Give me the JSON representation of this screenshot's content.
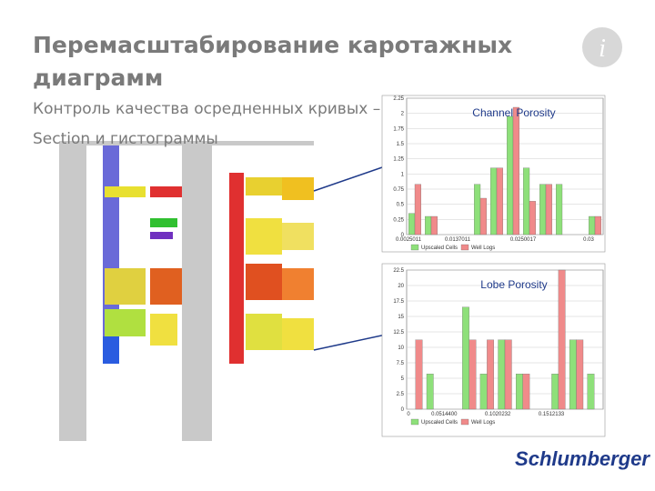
{
  "slide": {
    "title": "Перемасштабирование каротажных диаграмм",
    "subtitle": "Контроль качества осредненных кривых – Well Section и гистограммы",
    "logo": "Schlumberger"
  },
  "chart_data": [
    {
      "type": "bar",
      "title": "Channel Porosity",
      "categories": [
        "0.0025011",
        null,
        null,
        "0.0137011",
        null,
        null,
        null,
        "0.0250017",
        null,
        null,
        null,
        "0.03"
      ],
      "series": [
        {
          "name": "Upscaled Cells",
          "color": "#8ee07a",
          "values": [
            0.35,
            0.3,
            0,
            0,
            0.83,
            1.1,
            1.95,
            1.1,
            0.83,
            0.83,
            0,
            0.3
          ]
        },
        {
          "name": "Well Logs",
          "color": "#f08a8a",
          "values": [
            0.83,
            0.3,
            0,
            0,
            0.6,
            1.1,
            2.1,
            0.55,
            0.83,
            0,
            0,
            0.3
          ]
        }
      ],
      "ylim": [
        0,
        2.25
      ],
      "yticks": [
        0,
        0.25,
        0.5,
        0.75,
        1,
        1.25,
        1.5,
        1.75,
        2,
        2.25
      ],
      "grid": true,
      "legend": "bottom"
    },
    {
      "type": "bar",
      "title": "Lobe Porosity",
      "categories": [
        "0",
        null,
        "0.0514400",
        null,
        null,
        "0.1020232",
        null,
        null,
        "0.1512133",
        null,
        null
      ],
      "series": [
        {
          "name": "Upscaled Cells",
          "color": "#8ee07a",
          "values": [
            0,
            5.7,
            0,
            16.5,
            5.7,
            11.2,
            5.7,
            0,
            5.7,
            11.2,
            5.7
          ]
        },
        {
          "name": "Well Logs",
          "color": "#f08a8a",
          "values": [
            11.2,
            0,
            0,
            11.2,
            11.2,
            11.2,
            5.7,
            0,
            22.5,
            11.2,
            0
          ]
        }
      ],
      "ylim": [
        0,
        22.5
      ],
      "yticks": [
        0,
        2.5,
        5,
        7.5,
        10,
        12.5,
        15,
        17.5,
        20,
        22.5
      ],
      "grid": true,
      "legend": "bottom"
    }
  ]
}
